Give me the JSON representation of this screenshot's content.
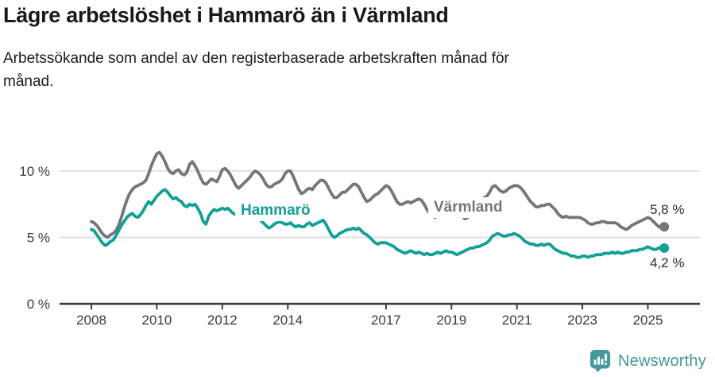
{
  "header": {
    "title": "Lägre arbetslöshet i Hammarö än i Värmland",
    "subtitle": "Arbetssökande som andel av den registerbaserade arbetskraften månad för månad."
  },
  "chart_data": {
    "type": "line",
    "x_unit": "month",
    "x_start": "2008-01",
    "x_end": "2025-07",
    "ylim": [
      0,
      12
    ],
    "grid": "horizontal",
    "legend": "inline-labels",
    "y_ticks": [
      {
        "value": 0,
        "label": "0 %"
      },
      {
        "value": 5,
        "label": "5 %"
      },
      {
        "value": 10,
        "label": "10 %"
      }
    ],
    "x_ticks": [
      {
        "value": 2008,
        "label": "2008"
      },
      {
        "value": 2010,
        "label": "2010"
      },
      {
        "value": 2012,
        "label": "2012"
      },
      {
        "value": 2014,
        "label": "2014"
      },
      {
        "value": 2017,
        "label": "2017"
      },
      {
        "value": 2019,
        "label": "2019"
      },
      {
        "value": 2021,
        "label": "2021"
      },
      {
        "value": 2023,
        "label": "2023"
      },
      {
        "value": 2025,
        "label": "2025"
      }
    ],
    "layout": {
      "axis_color": "#3C3C3C",
      "grid_color": "#DBDBDB"
    },
    "series": [
      {
        "name": "Värmland",
        "color": "#76757B",
        "end_value": 5.8,
        "end_value_label": "5,8 %",
        "values": [
          6.2,
          6.1,
          5.9,
          5.6,
          5.3,
          5.1,
          5.0,
          5.2,
          5.3,
          5.5,
          5.9,
          6.5,
          7.2,
          7.8,
          8.3,
          8.6,
          8.8,
          8.9,
          9.0,
          9.1,
          9.3,
          9.8,
          10.4,
          10.9,
          11.3,
          11.4,
          11.1,
          10.7,
          10.2,
          9.9,
          9.8,
          10.0,
          10.1,
          9.8,
          9.7,
          9.9,
          10.5,
          10.7,
          10.4,
          10.0,
          9.5,
          9.1,
          9.0,
          9.2,
          9.4,
          9.3,
          9.2,
          9.6,
          10.1,
          10.2,
          10.0,
          9.7,
          9.3,
          8.9,
          8.7,
          8.9,
          9.1,
          9.3,
          9.5,
          9.8,
          10.0,
          9.9,
          9.7,
          9.4,
          9.0,
          8.8,
          8.8,
          9.0,
          9.1,
          9.2,
          9.4,
          9.8,
          10.0,
          10.0,
          9.6,
          9.1,
          8.6,
          8.3,
          8.4,
          8.6,
          8.7,
          8.6,
          8.9,
          9.1,
          9.3,
          9.3,
          9.1,
          8.7,
          8.3,
          8.0,
          8.0,
          8.2,
          8.4,
          8.4,
          8.6,
          8.8,
          9.0,
          9.0,
          8.8,
          8.4,
          8.0,
          7.7,
          7.8,
          8.0,
          8.2,
          8.3,
          8.5,
          8.7,
          8.9,
          8.8,
          8.5,
          8.1,
          7.7,
          7.5,
          7.5,
          7.6,
          7.7,
          7.6,
          7.7,
          7.8,
          7.9,
          7.8,
          7.5,
          7.1,
          6.8,
          6.6,
          6.5,
          6.7,
          6.8,
          6.9,
          7.1,
          7.3,
          7.5,
          7.4,
          7.2,
          6.9,
          6.6,
          6.4,
          6.5,
          6.7,
          6.9,
          7.1,
          7.3,
          7.6,
          8.0,
          8.1,
          8.4,
          8.8,
          8.9,
          8.7,
          8.5,
          8.4,
          8.5,
          8.7,
          8.8,
          8.9,
          8.9,
          8.8,
          8.6,
          8.3,
          8.0,
          7.7,
          7.5,
          7.3,
          7.3,
          7.4,
          7.4,
          7.5,
          7.5,
          7.3,
          7.1,
          6.8,
          6.6,
          6.5,
          6.6,
          6.5,
          6.5,
          6.5,
          6.5,
          6.5,
          6.4,
          6.3,
          6.1,
          6.0,
          6.0,
          6.1,
          6.1,
          6.2,
          6.2,
          6.1,
          6.1,
          6.1,
          6.1,
          6.0,
          5.8,
          5.7,
          5.6,
          5.7,
          5.9,
          6.0,
          6.1,
          6.2,
          6.3,
          6.4,
          6.5,
          6.4,
          6.2,
          6.0,
          5.8,
          5.7,
          5.8
        ]
      },
      {
        "name": "Hammarö",
        "color": "#11A094",
        "end_value": 4.2,
        "end_value_label": "4,2 %",
        "values": [
          5.6,
          5.5,
          5.2,
          4.9,
          4.6,
          4.4,
          4.5,
          4.7,
          4.8,
          5.1,
          5.5,
          5.9,
          6.2,
          6.5,
          6.7,
          6.8,
          6.6,
          6.5,
          6.7,
          7.0,
          7.4,
          7.7,
          7.5,
          7.8,
          8.1,
          8.3,
          8.5,
          8.6,
          8.4,
          8.1,
          7.9,
          8.0,
          7.8,
          7.7,
          7.4,
          7.3,
          7.5,
          7.4,
          7.5,
          7.2,
          6.8,
          6.2,
          6.0,
          6.6,
          6.9,
          7.1,
          7.0,
          7.1,
          7.2,
          7.1,
          7.2,
          7.0,
          6.8,
          6.7,
          6.5,
          6.6,
          6.7,
          6.6,
          6.5,
          6.5,
          6.5,
          6.4,
          6.3,
          6.1,
          5.9,
          5.7,
          5.8,
          6.0,
          6.1,
          6.2,
          6.1,
          6.0,
          6.0,
          6.1,
          5.9,
          5.8,
          5.9,
          5.8,
          5.8,
          6.0,
          6.1,
          5.9,
          6.0,
          6.1,
          6.2,
          6.3,
          6.0,
          5.6,
          5.2,
          5.0,
          5.1,
          5.3,
          5.4,
          5.5,
          5.6,
          5.6,
          5.7,
          5.6,
          5.7,
          5.5,
          5.3,
          5.2,
          5.0,
          4.8,
          4.6,
          4.5,
          4.6,
          4.6,
          4.6,
          4.5,
          4.4,
          4.3,
          4.1,
          4.0,
          3.9,
          3.8,
          3.9,
          4.0,
          3.9,
          3.8,
          3.9,
          3.8,
          3.7,
          3.8,
          3.7,
          3.7,
          3.8,
          3.9,
          3.8,
          3.9,
          4.0,
          3.9,
          3.9,
          3.8,
          3.7,
          3.8,
          3.9,
          4.0,
          4.1,
          4.2,
          4.2,
          4.3,
          4.3,
          4.4,
          4.5,
          4.6,
          4.8,
          5.1,
          5.2,
          5.3,
          5.2,
          5.1,
          5.1,
          5.2,
          5.2,
          5.3,
          5.2,
          5.1,
          4.9,
          4.7,
          4.6,
          4.5,
          4.5,
          4.4,
          4.4,
          4.5,
          4.4,
          4.5,
          4.5,
          4.3,
          4.1,
          4.0,
          3.9,
          3.8,
          3.8,
          3.7,
          3.6,
          3.6,
          3.5,
          3.5,
          3.6,
          3.6,
          3.5,
          3.6,
          3.6,
          3.7,
          3.7,
          3.7,
          3.8,
          3.8,
          3.8,
          3.9,
          3.8,
          3.9,
          3.8,
          3.8,
          3.9,
          3.9,
          4.0,
          4.0,
          4.0,
          4.1,
          4.1,
          4.2,
          4.3,
          4.2,
          4.1,
          4.1,
          4.2,
          4.3,
          4.2
        ]
      }
    ]
  },
  "annotations": {
    "varmland_inline_label": "Värmland",
    "hammaro_inline_label": "Hammarö",
    "varmland_end_label": "5,8 %",
    "hammaro_end_label": "4,2 %"
  },
  "footer": {
    "brand_name": "Newsworthy",
    "brand_color": "#44999B"
  }
}
